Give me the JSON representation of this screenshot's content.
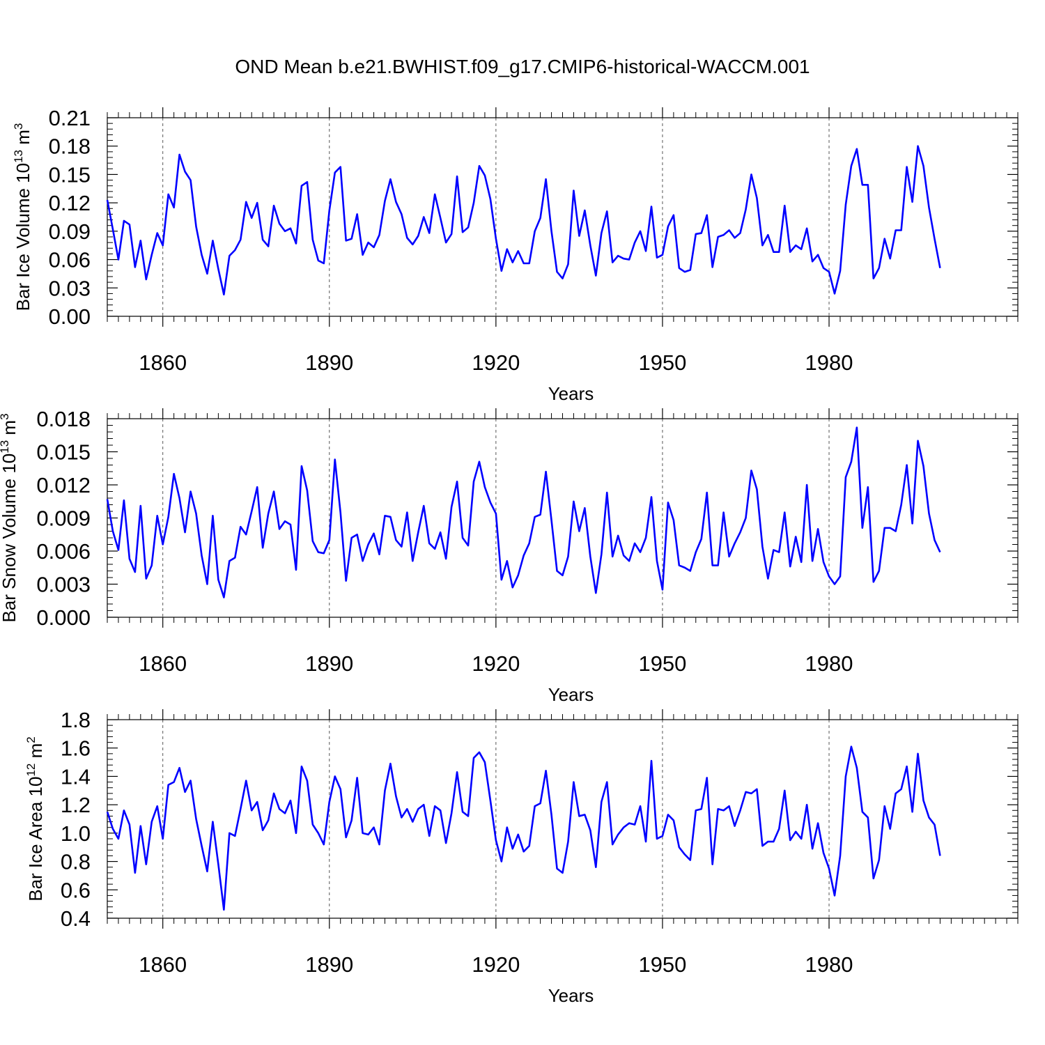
{
  "title": "OND Mean b.e21.BWHIST.f09_g17.CMIP6-historical-WACCM.001",
  "colors": {
    "series": "#0000ff",
    "axes": "#000000",
    "grid": "#555555",
    "background": "#ffffff"
  },
  "chart_data": [
    {
      "type": "line",
      "title": "OND Mean b.e21.BWHIST.f09_g17.CMIP6-historical-WACCM.001",
      "xlabel": "Years",
      "ylabel": {
        "text": "Bar Ice Volume 10",
        "exp": "13",
        "unit": " m",
        "unit_exp": "3"
      },
      "xlim": [
        1850,
        2014
      ],
      "ylim": [
        0.0,
        0.21
      ],
      "xticks": [
        1860,
        1890,
        1920,
        1950,
        1980
      ],
      "xtick_labels": [
        "1860",
        "1890",
        "1920",
        "1950",
        "1980"
      ],
      "yticks": [
        0.0,
        0.03,
        0.06,
        0.09,
        0.12,
        0.15,
        0.18,
        0.21
      ],
      "ytick_labels": [
        "0.00",
        "0.03",
        "0.06",
        "0.09",
        "0.12",
        "0.15",
        "0.18",
        "0.21"
      ],
      "grid": "vertical dashed at x ticks",
      "x_start": 1850,
      "series": [
        {
          "name": "Bar Ice Volume",
          "values": [
            0.123,
            0.092,
            0.06,
            0.101,
            0.097,
            0.052,
            0.08,
            0.039,
            0.065,
            0.088,
            0.075,
            0.129,
            0.115,
            0.171,
            0.153,
            0.144,
            0.095,
            0.065,
            0.045,
            0.08,
            0.05,
            0.023,
            0.064,
            0.07,
            0.081,
            0.121,
            0.104,
            0.12,
            0.081,
            0.074,
            0.117,
            0.098,
            0.09,
            0.093,
            0.077,
            0.138,
            0.142,
            0.081,
            0.059,
            0.056,
            0.112,
            0.152,
            0.158,
            0.08,
            0.082,
            0.108,
            0.065,
            0.078,
            0.073,
            0.086,
            0.122,
            0.145,
            0.121,
            0.108,
            0.083,
            0.076,
            0.085,
            0.105,
            0.088,
            0.129,
            0.104,
            0.078,
            0.087,
            0.148,
            0.089,
            0.094,
            0.12,
            0.159,
            0.149,
            0.124,
            0.082,
            0.048,
            0.071,
            0.057,
            0.069,
            0.056,
            0.056,
            0.09,
            0.104,
            0.145,
            0.09,
            0.047,
            0.04,
            0.055,
            0.133,
            0.085,
            0.112,
            0.075,
            0.043,
            0.088,
            0.111,
            0.057,
            0.064,
            0.061,
            0.06,
            0.078,
            0.09,
            0.069,
            0.116,
            0.062,
            0.065,
            0.095,
            0.107,
            0.051,
            0.047,
            0.049,
            0.087,
            0.088,
            0.107,
            0.052,
            0.084,
            0.086,
            0.091,
            0.083,
            0.088,
            0.113,
            0.15,
            0.125,
            0.075,
            0.086,
            0.068,
            0.068,
            0.117,
            0.068,
            0.075,
            0.071,
            0.093,
            0.058,
            0.065,
            0.051,
            0.047,
            0.024,
            0.048,
            0.118,
            0.159,
            0.177,
            0.139,
            0.139,
            0.04,
            0.051,
            0.082,
            0.061,
            0.091,
            0.091,
            0.158,
            0.121,
            0.18,
            0.159,
            0.115,
            0.082,
            0.051
          ]
        }
      ]
    },
    {
      "type": "line",
      "xlabel": "Years",
      "ylabel": {
        "text": "Bar Snow Volume 10",
        "exp": "13",
        "unit": " m",
        "unit_exp": "3"
      },
      "xlim": [
        1850,
        2014
      ],
      "ylim": [
        0.0,
        0.018
      ],
      "xticks": [
        1860,
        1890,
        1920,
        1950,
        1980
      ],
      "xtick_labels": [
        "1860",
        "1890",
        "1920",
        "1950",
        "1980"
      ],
      "yticks": [
        0.0,
        0.003,
        0.006,
        0.009,
        0.012,
        0.015,
        0.018
      ],
      "ytick_labels": [
        "0.000",
        "0.003",
        "0.006",
        "0.009",
        "0.012",
        "0.015",
        "0.018"
      ],
      "grid": "vertical dashed at x ticks",
      "x_start": 1850,
      "series": [
        {
          "name": "Bar Snow Volume",
          "values": [
            0.0107,
            0.0078,
            0.0061,
            0.0106,
            0.0053,
            0.0041,
            0.0101,
            0.0035,
            0.0047,
            0.0092,
            0.0066,
            0.0091,
            0.013,
            0.0108,
            0.0077,
            0.0114,
            0.0094,
            0.0056,
            0.003,
            0.0092,
            0.0034,
            0.0018,
            0.0051,
            0.0054,
            0.0082,
            0.0075,
            0.0096,
            0.0118,
            0.0063,
            0.0094,
            0.0114,
            0.008,
            0.0087,
            0.0084,
            0.0043,
            0.0137,
            0.0115,
            0.0069,
            0.0059,
            0.0058,
            0.007,
            0.0143,
            0.0095,
            0.0033,
            0.0072,
            0.0075,
            0.0051,
            0.0066,
            0.0076,
            0.0057,
            0.0092,
            0.0091,
            0.007,
            0.0064,
            0.0095,
            0.0051,
            0.0077,
            0.0101,
            0.0067,
            0.0062,
            0.0077,
            0.0053,
            0.01,
            0.0123,
            0.0072,
            0.0065,
            0.0123,
            0.0141,
            0.0118,
            0.0104,
            0.0094,
            0.0034,
            0.0051,
            0.0027,
            0.0038,
            0.0056,
            0.0067,
            0.0091,
            0.0093,
            0.0132,
            0.0088,
            0.0042,
            0.0038,
            0.0055,
            0.0105,
            0.0078,
            0.0099,
            0.0055,
            0.0022,
            0.0057,
            0.0113,
            0.0055,
            0.0074,
            0.0056,
            0.0051,
            0.0067,
            0.0059,
            0.0072,
            0.0109,
            0.0051,
            0.0025,
            0.0104,
            0.0088,
            0.0047,
            0.0045,
            0.0042,
            0.0059,
            0.0071,
            0.0113,
            0.0047,
            0.0047,
            0.0095,
            0.0055,
            0.0067,
            0.0077,
            0.009,
            0.0133,
            0.0116,
            0.0064,
            0.0035,
            0.0061,
            0.0059,
            0.0095,
            0.0046,
            0.0073,
            0.005,
            0.012,
            0.0051,
            0.008,
            0.005,
            0.0037,
            0.003,
            0.0037,
            0.0127,
            0.0141,
            0.0172,
            0.0081,
            0.0118,
            0.0032,
            0.0042,
            0.0081,
            0.0081,
            0.0078,
            0.0102,
            0.0138,
            0.0085,
            0.016,
            0.0137,
            0.0094,
            0.007,
            0.0059
          ]
        }
      ]
    },
    {
      "type": "line",
      "xlabel": "Years",
      "ylabel": {
        "text": "Bar Ice Area 10",
        "exp": "12",
        "unit": " m",
        "unit_exp": "2"
      },
      "xlim": [
        1850,
        2014
      ],
      "ylim": [
        0.4,
        1.8
      ],
      "xticks": [
        1860,
        1890,
        1920,
        1950,
        1980
      ],
      "xtick_labels": [
        "1860",
        "1890",
        "1920",
        "1950",
        "1980"
      ],
      "yticks": [
        0.4,
        0.6,
        0.8,
        1.0,
        1.2,
        1.4,
        1.6,
        1.8
      ],
      "ytick_labels": [
        "0.4",
        "0.6",
        "0.8",
        "1.0",
        "1.2",
        "1.4",
        "1.6",
        "1.8"
      ],
      "grid": "vertical dashed at x ticks",
      "x_start": 1850,
      "series": [
        {
          "name": "Bar Ice Area",
          "values": [
            1.15,
            1.03,
            0.96,
            1.16,
            1.06,
            0.72,
            1.05,
            0.78,
            1.08,
            1.19,
            0.96,
            1.34,
            1.36,
            1.46,
            1.29,
            1.37,
            1.1,
            0.91,
            0.73,
            1.08,
            0.78,
            0.46,
            1.0,
            0.98,
            1.17,
            1.37,
            1.16,
            1.22,
            1.02,
            1.09,
            1.28,
            1.17,
            1.14,
            1.23,
            1.0,
            1.47,
            1.37,
            1.06,
            1.0,
            0.92,
            1.22,
            1.4,
            1.31,
            0.97,
            1.09,
            1.39,
            1.0,
            0.99,
            1.04,
            0.92,
            1.3,
            1.49,
            1.26,
            1.11,
            1.17,
            1.08,
            1.17,
            1.2,
            0.98,
            1.19,
            1.16,
            0.93,
            1.14,
            1.43,
            1.15,
            1.12,
            1.53,
            1.57,
            1.5,
            1.23,
            0.95,
            0.8,
            1.04,
            0.89,
            0.99,
            0.87,
            0.91,
            1.19,
            1.21,
            1.44,
            1.13,
            0.75,
            0.72,
            0.94,
            1.36,
            1.12,
            1.13,
            1.02,
            0.76,
            1.22,
            1.36,
            0.92,
            0.99,
            1.04,
            1.07,
            1.06,
            1.19,
            0.94,
            1.51,
            0.96,
            0.98,
            1.13,
            1.09,
            0.9,
            0.85,
            0.81,
            1.16,
            1.17,
            1.39,
            0.78,
            1.17,
            1.16,
            1.19,
            1.05,
            1.16,
            1.29,
            1.28,
            1.31,
            0.91,
            0.94,
            0.94,
            1.03,
            1.3,
            0.95,
            1.01,
            0.96,
            1.2,
            0.89,
            1.07,
            0.86,
            0.75,
            0.56,
            0.84,
            1.4,
            1.61,
            1.46,
            1.15,
            1.11,
            0.68,
            0.81,
            1.19,
            1.03,
            1.28,
            1.31,
            1.47,
            1.15,
            1.56,
            1.23,
            1.11,
            1.06,
            0.84
          ]
        }
      ]
    }
  ]
}
